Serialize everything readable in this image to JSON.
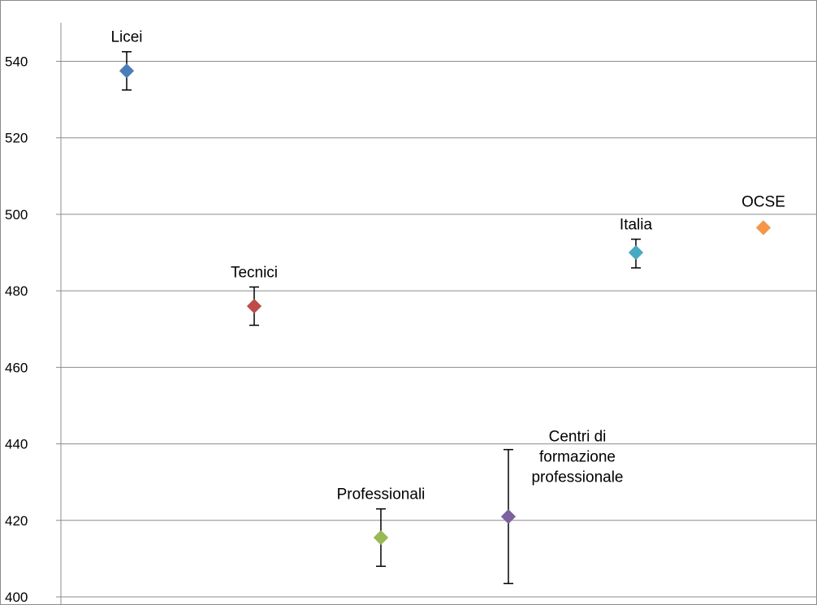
{
  "chart_data": {
    "type": "scatter",
    "title": "",
    "xlabel": "",
    "ylabel": "",
    "ylim": [
      400,
      550
    ],
    "yticks": [
      400,
      420,
      440,
      460,
      480,
      500,
      520,
      540
    ],
    "grid": true,
    "legend": "none",
    "points": [
      {
        "label": "Licei",
        "x": 1,
        "y": 537.5,
        "err_low": 532.5,
        "err_high": 542.5,
        "color": "#4a7ebb"
      },
      {
        "label": "Tecnici",
        "x": 2,
        "y": 476,
        "err_low": 471,
        "err_high": 481,
        "color": "#be4b48"
      },
      {
        "label": "Professionali",
        "x": 3,
        "y": 415.5,
        "err_low": 408,
        "err_high": 423,
        "color": "#98b954"
      },
      {
        "label": "Centri di formazione professionale",
        "x": 4,
        "y": 421,
        "err_low": 403.5,
        "err_high": 438.5,
        "color": "#7d60a0"
      },
      {
        "label": "Italia",
        "x": 5,
        "y": 490,
        "err_low": 486,
        "err_high": 493.5,
        "color": "#46aac5"
      },
      {
        "label": "OCSE",
        "x": 6,
        "y": 496.5,
        "err_low": null,
        "err_high": null,
        "color": "#f79646"
      }
    ],
    "label_lines": {
      "Centri di formazione professionale": [
        "Centri di",
        "formazione",
        "professionale"
      ]
    }
  }
}
